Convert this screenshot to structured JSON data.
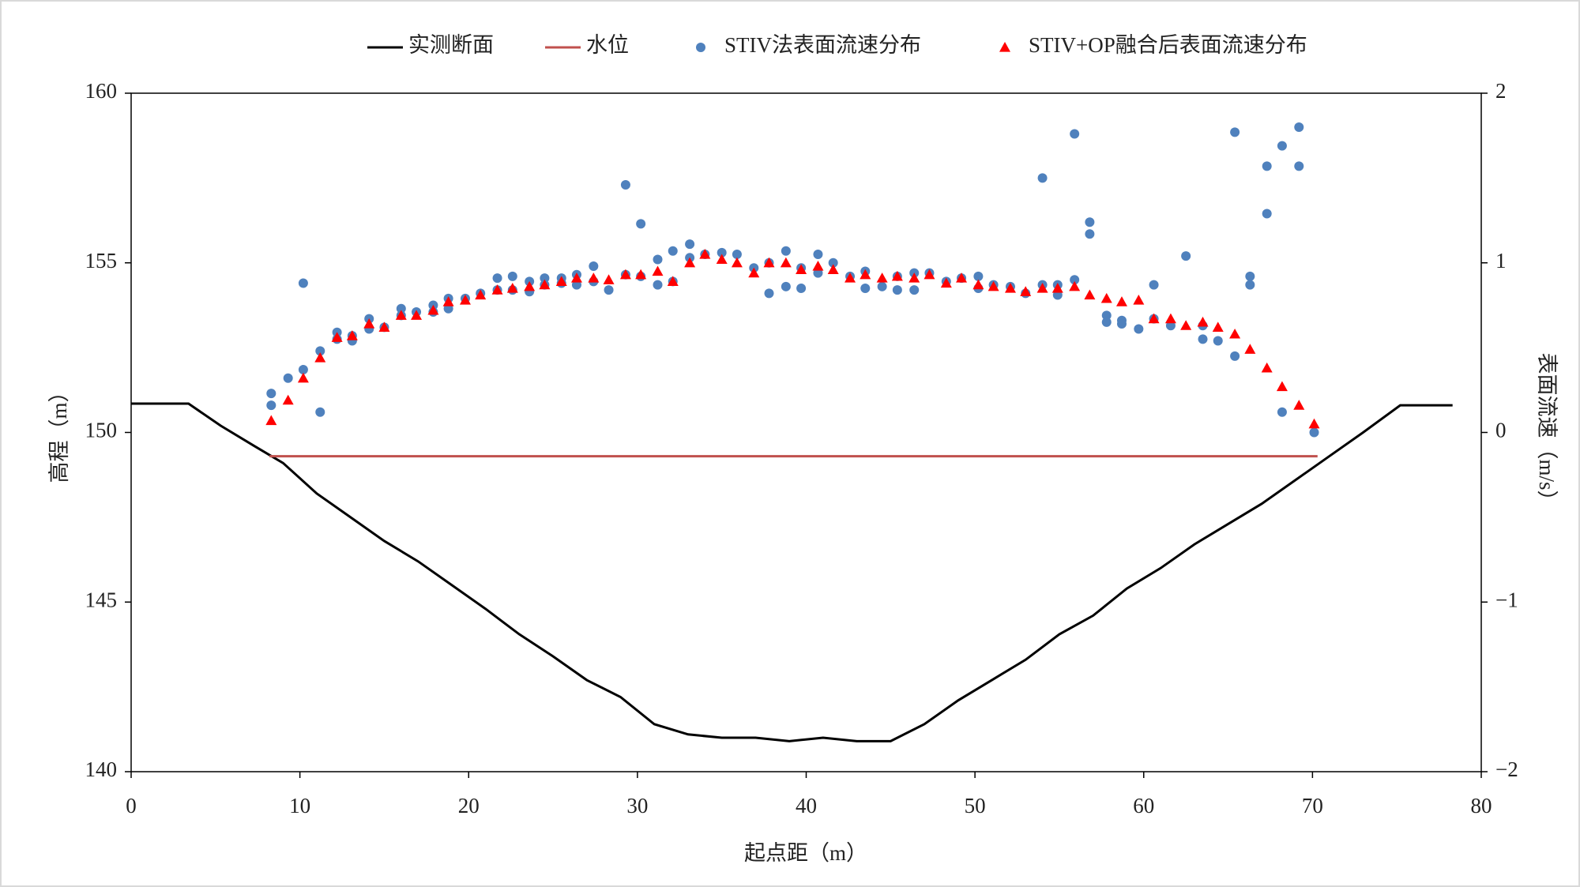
{
  "chart_data": {
    "type": "combo",
    "xlabel": "起点距（m）",
    "ylabel": "高程（m）",
    "y2label": "表面流速（m/s）",
    "xlim": [
      0,
      80
    ],
    "xticks": [
      0,
      10,
      20,
      30,
      40,
      50,
      60,
      70,
      80
    ],
    "ylim": [
      140,
      160
    ],
    "yticks": [
      140,
      145,
      150,
      155,
      160
    ],
    "y2lim": [
      -2,
      2
    ],
    "y2ticks": [
      {
        "value": -2,
        "label": "−2"
      },
      {
        "value": -1,
        "label": "−1"
      },
      0,
      1,
      2
    ],
    "legend": "top",
    "series": [
      {
        "name": "实测断面",
        "type": "line",
        "color": "#000000",
        "x": [
          0,
          3.4,
          5.3,
          7.3,
          9,
          11,
          13,
          15,
          17,
          19,
          21,
          23,
          25,
          27,
          29,
          31,
          33,
          35,
          37,
          39,
          41,
          43,
          45,
          47,
          49,
          51,
          53,
          55,
          57,
          59,
          61,
          63,
          65,
          67,
          69,
          71,
          73,
          75.2,
          78.3
        ],
        "values": [
          150.85,
          150.85,
          150.2,
          149.6,
          149.1,
          148.2,
          147.5,
          146.8,
          146.2,
          145.5,
          144.8,
          144.05,
          143.4,
          142.7,
          142.2,
          141.4,
          141.1,
          141.0,
          141.0,
          140.9,
          141.0,
          140.9,
          140.9,
          141.4,
          142.1,
          142.7,
          143.3,
          144.05,
          144.6,
          145.4,
          146.0,
          146.7,
          147.3,
          147.9,
          148.6,
          149.3,
          150.0,
          150.8,
          150.8
        ]
      },
      {
        "name": "水位",
        "type": "line",
        "color": "#c0504d",
        "x": [
          8.2,
          70.3
        ],
        "values": [
          149.3,
          149.3
        ]
      },
      {
        "name": "STIV法表面流速分布",
        "type": "scatter",
        "marker": "circle",
        "color": "#4f81bd",
        "axis": "y2",
        "x": [
          8.3,
          8.3,
          9.3,
          10.2,
          10.2,
          11.2,
          11.2,
          12.2,
          12.2,
          13.1,
          13.1,
          14.1,
          14.1,
          15.0,
          16.0,
          16.0,
          16.9,
          17.9,
          17.9,
          18.8,
          18.8,
          19.8,
          20.7,
          21.7,
          21.7,
          22.6,
          22.6,
          23.6,
          23.6,
          24.5,
          24.5,
          25.5,
          25.5,
          26.4,
          26.4,
          27.4,
          27.4,
          28.3,
          29.3,
          29.3,
          30.2,
          30.2,
          31.2,
          31.2,
          32.1,
          32.1,
          33.1,
          33.1,
          34.0,
          35.0,
          35.9,
          36.9,
          37.8,
          37.8,
          38.8,
          38.8,
          39.7,
          39.7,
          40.7,
          40.7,
          41.6,
          42.6,
          43.5,
          43.5,
          44.5,
          45.4,
          45.4,
          46.4,
          46.4,
          47.3,
          48.3,
          49.2,
          50.2,
          50.2,
          51.1,
          52.1,
          53.0,
          54.0,
          54.0,
          54.9,
          54.9,
          55.9,
          55.9,
          56.8,
          56.8,
          57.8,
          57.8,
          58.7,
          58.7,
          59.7,
          60.6,
          60.6,
          61.6,
          62.5,
          63.5,
          63.5,
          64.4,
          65.4,
          65.4,
          66.3,
          66.3,
          67.3,
          67.3,
          68.2,
          68.2,
          69.2,
          69.2,
          70.1
        ],
        "values": [
          0.23,
          0.16,
          0.32,
          0.37,
          0.88,
          0.48,
          0.12,
          0.59,
          0.55,
          0.57,
          0.54,
          0.67,
          0.61,
          0.62,
          0.73,
          0.69,
          0.71,
          0.75,
          0.71,
          0.79,
          0.73,
          0.79,
          0.82,
          0.91,
          0.84,
          0.92,
          0.84,
          0.89,
          0.83,
          0.91,
          0.87,
          0.91,
          0.88,
          0.93,
          0.87,
          0.98,
          0.89,
          0.84,
          1.46,
          0.93,
          1.23,
          0.92,
          1.02,
          0.87,
          1.07,
          0.89,
          1.11,
          1.03,
          1.05,
          1.06,
          1.05,
          0.97,
          0.82,
          1.0,
          1.07,
          0.86,
          0.97,
          0.85,
          1.05,
          0.94,
          1.0,
          0.92,
          0.95,
          0.85,
          0.86,
          0.84,
          0.92,
          0.94,
          0.84,
          0.94,
          0.89,
          0.91,
          0.92,
          0.85,
          0.87,
          0.86,
          0.82,
          1.5,
          0.87,
          0.87,
          0.81,
          1.76,
          0.9,
          1.24,
          1.17,
          0.69,
          0.65,
          0.66,
          0.64,
          0.61,
          0.87,
          0.67,
          0.63,
          1.04,
          0.63,
          0.55,
          0.54,
          1.77,
          0.45,
          0.92,
          0.87,
          1.57,
          1.29,
          1.69,
          0.12,
          1.8,
          1.57,
          0.0
        ]
      },
      {
        "name": "STIV+OP融合后表面流速分布",
        "type": "scatter",
        "marker": "triangle",
        "color": "#ff0000",
        "axis": "y2",
        "x": [
          8.3,
          9.3,
          10.2,
          11.2,
          12.2,
          13.1,
          14.1,
          15.0,
          16.0,
          16.9,
          17.9,
          18.8,
          19.8,
          20.7,
          21.7,
          22.6,
          23.6,
          24.5,
          25.5,
          26.4,
          27.4,
          28.3,
          29.3,
          30.2,
          31.2,
          32.1,
          33.1,
          34.0,
          35.0,
          35.9,
          36.9,
          37.8,
          38.8,
          39.7,
          40.7,
          41.6,
          42.6,
          43.5,
          44.5,
          45.4,
          46.4,
          47.3,
          48.3,
          49.2,
          50.2,
          51.1,
          52.1,
          53.0,
          54.0,
          54.9,
          55.9,
          56.8,
          57.8,
          58.7,
          59.7,
          60.6,
          61.6,
          62.5,
          63.5,
          64.4,
          65.4,
          66.3,
          67.3,
          68.2,
          69.2,
          70.1
        ],
        "values": [
          0.07,
          0.19,
          0.32,
          0.44,
          0.56,
          0.57,
          0.64,
          0.62,
          0.69,
          0.69,
          0.72,
          0.77,
          0.78,
          0.81,
          0.84,
          0.85,
          0.86,
          0.87,
          0.89,
          0.91,
          0.91,
          0.9,
          0.93,
          0.93,
          0.95,
          0.89,
          1.0,
          1.05,
          1.02,
          1.0,
          0.94,
          1.0,
          1.0,
          0.96,
          0.98,
          0.96,
          0.91,
          0.93,
          0.91,
          0.92,
          0.91,
          0.93,
          0.88,
          0.91,
          0.87,
          0.86,
          0.85,
          0.83,
          0.85,
          0.85,
          0.86,
          0.81,
          0.79,
          0.77,
          0.78,
          0.67,
          0.67,
          0.63,
          0.65,
          0.62,
          0.58,
          0.49,
          0.38,
          0.27,
          0.16,
          0.05
        ]
      }
    ]
  }
}
